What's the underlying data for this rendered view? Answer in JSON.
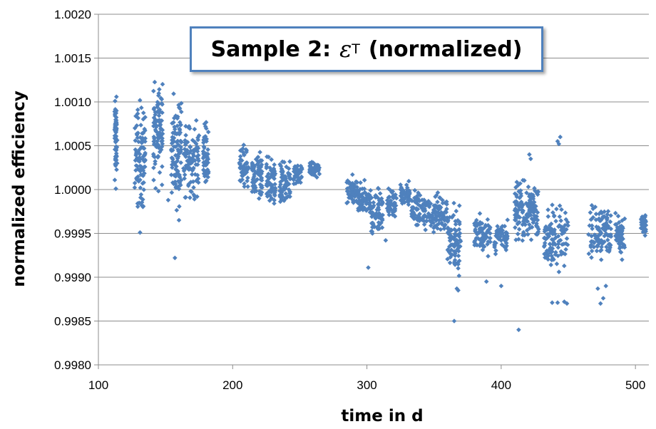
{
  "chart_data": {
    "type": "scatter",
    "title": "Sample 2: εT (normalized)",
    "title_parts": {
      "prefix": "Sample 2:",
      "symbol": "ε",
      "subscript": "T",
      "suffix": "(normalized)"
    },
    "xlabel": "time in d",
    "ylabel": "normalized efficiency",
    "xlim": [
      100,
      510
    ],
    "ylim": [
      0.998,
      1.002
    ],
    "x_ticks": [
      100,
      200,
      300,
      400,
      500
    ],
    "y_ticks": [
      "0.9980",
      "0.9985",
      "0.9990",
      "0.9995",
      "1.0000",
      "1.0005",
      "1.0010",
      "1.0015",
      "1.0020"
    ],
    "grid": "horizontal",
    "legend": "none",
    "marker": "diamond",
    "color": "#4f81bd",
    "clusters": [
      {
        "x": [
          112,
          114
        ],
        "y": [
          0.99995,
          1.00122
        ]
      },
      {
        "x": [
          127,
          135
        ],
        "y": [
          0.99955,
          1.00118
        ]
      },
      {
        "x": [
          141,
          148
        ],
        "y": [
          0.99985,
          1.0015
        ]
      },
      {
        "x": [
          154,
          162
        ],
        "y": [
          0.99965,
          1.00128
        ]
      },
      {
        "x": [
          163,
          175
        ],
        "y": [
          0.99975,
          1.00092
        ]
      },
      {
        "x": [
          178,
          182
        ],
        "y": [
          0.99985,
          1.00088
        ]
      },
      {
        "x": [
          205,
          212
        ],
        "y": [
          0.99995,
          1.00055
        ]
      },
      {
        "x": [
          214,
          222
        ],
        "y": [
          0.99975,
          1.00052
        ]
      },
      {
        "x": [
          225,
          232
        ],
        "y": [
          0.99965,
          1.00048
        ]
      },
      {
        "x": [
          235,
          243
        ],
        "y": [
          0.99965,
          1.00045
        ]
      },
      {
        "x": [
          245,
          252
        ],
        "y": [
          1.0,
          1.00035
        ]
      },
      {
        "x": [
          257,
          265
        ],
        "y": [
          1.0001,
          1.00035
        ]
      },
      {
        "x": [
          285,
          293
        ],
        "y": [
          0.99975,
          1.0002
        ]
      },
      {
        "x": [
          293,
          303
        ],
        "y": [
          0.9996,
          1.00015
        ]
      },
      {
        "x": [
          303,
          312
        ],
        "y": [
          0.9994,
          1.0001
        ]
      },
      {
        "x": [
          315,
          322
        ],
        "y": [
          0.9996,
          1.00008
        ]
      },
      {
        "x": [
          325,
          332
        ],
        "y": [
          0.99975,
          1.00018
        ]
      },
      {
        "x": [
          333,
          345
        ],
        "y": [
          0.99945,
          1.00008
        ]
      },
      {
        "x": [
          345,
          360
        ],
        "y": [
          0.9994,
          1.00005
        ]
      },
      {
        "x": [
          360,
          370
        ],
        "y": [
          0.9989,
          0.99995
        ]
      },
      {
        "x": [
          380,
          392
        ],
        "y": [
          0.9992,
          0.9998
        ]
      },
      {
        "x": [
          395,
          405
        ],
        "y": [
          0.9992,
          0.9997
        ]
      },
      {
        "x": [
          410,
          420
        ],
        "y": [
          0.9993,
          1.0002
        ]
      },
      {
        "x": [
          420,
          428
        ],
        "y": [
          0.9993,
          1.0002
        ]
      },
      {
        "x": [
          432,
          450
        ],
        "y": [
          0.999,
          0.99995
        ]
      },
      {
        "x": [
          465,
          482
        ],
        "y": [
          0.9991,
          0.99995
        ]
      },
      {
        "x": [
          485,
          492
        ],
        "y": [
          0.9991,
          0.9998
        ]
      },
      {
        "x": [
          504,
          508
        ],
        "y": [
          0.9994,
          0.9998
        ]
      }
    ],
    "outliers": {
      "x": [
        113,
        131,
        157,
        160,
        152,
        301,
        314,
        365,
        367,
        368,
        389,
        400,
        413,
        438,
        442,
        444,
        447,
        449,
        472,
        474,
        476,
        478,
        442,
        443,
        421,
        422
      ],
      "y": [
        1.00001,
        0.99951,
        0.99922,
        0.99965,
        0.99988,
        0.99911,
        0.99942,
        0.9985,
        0.99887,
        0.99885,
        0.99895,
        0.9989,
        0.9984,
        0.99871,
        0.99871,
        1.0006,
        0.99872,
        0.9987,
        0.99887,
        0.9987,
        0.99876,
        0.9989,
        1.00055,
        1.00052,
        1.0004,
        1.00035
      ]
    }
  }
}
